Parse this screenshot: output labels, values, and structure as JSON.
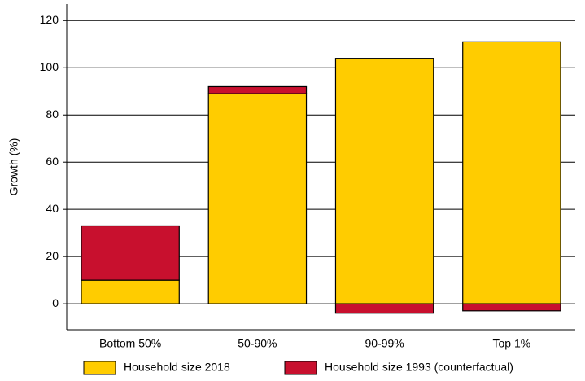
{
  "chart_data": {
    "type": "stacked-bar",
    "y_label": "Growth (%)",
    "categories": [
      "Bottom 50%",
      "50-90%",
      "90-99%",
      "Top 1%"
    ],
    "series": [
      {
        "name": "Household size 2018",
        "color": "#ffcc00",
        "values": [
          10,
          89,
          104,
          111
        ]
      },
      {
        "name": "Household size 1993 (counterfactual)",
        "color": "#c8102e",
        "values": [
          23,
          3,
          -4,
          -3
        ]
      }
    ],
    "ylim": [
      -11,
      127
    ],
    "yticks": [
      0,
      20,
      40,
      60,
      80,
      100,
      120
    ],
    "grid": true,
    "legend": "bottom"
  }
}
